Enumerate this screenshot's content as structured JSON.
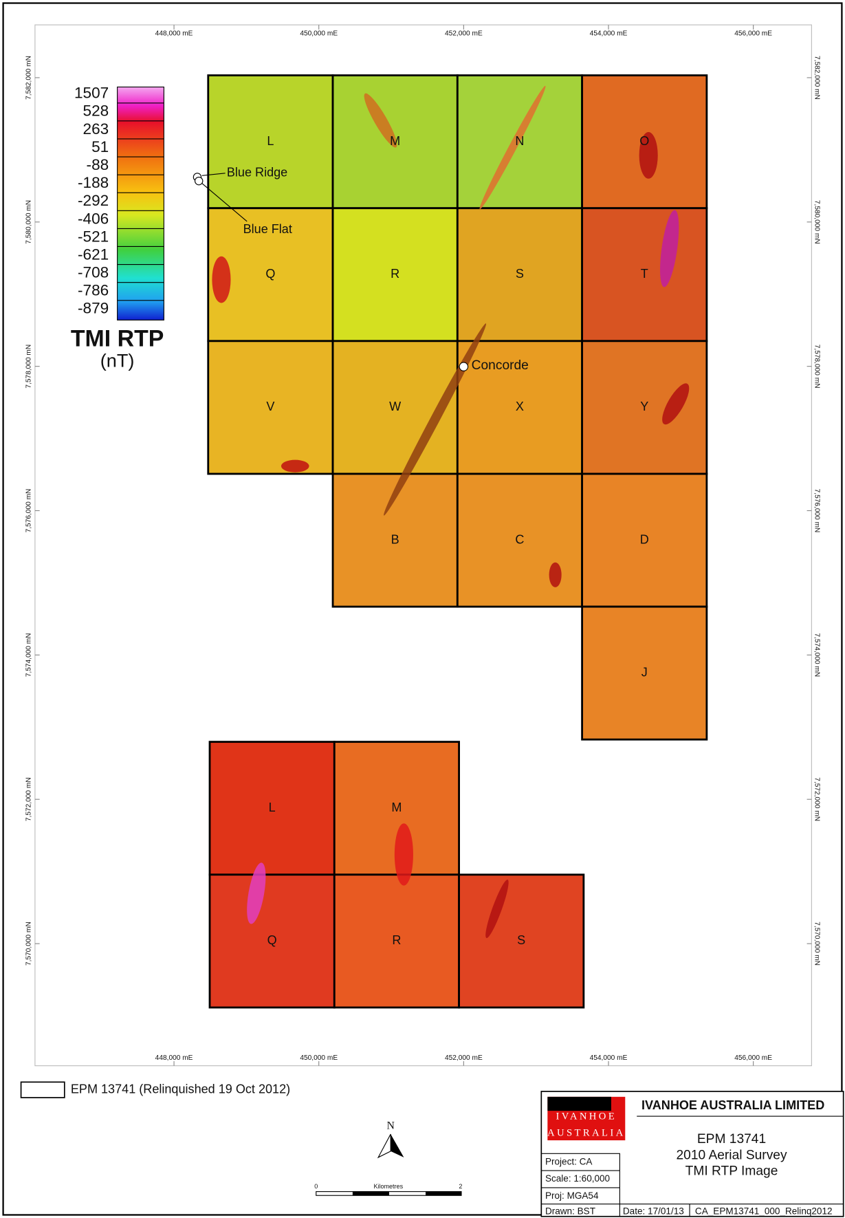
{
  "map": {
    "eastings": [
      "448,000 mE",
      "450,000 mE",
      "452,000 mE",
      "454,000 mE",
      "456,000 mE"
    ],
    "northings": [
      "7,582,000 mN",
      "7,580,000 mN",
      "7,578,000 mN",
      "7,576,000 mN",
      "7,574,000 mN",
      "7,572,000 mN",
      "7,570,000 mN"
    ],
    "legend": {
      "values": [
        "1507",
        "528",
        "263",
        "51",
        "-88",
        "-188",
        "-292",
        "-406",
        "-521",
        "-621",
        "-708",
        "-786",
        "-879"
      ],
      "title": "TMI RTP",
      "unit": "(nT)"
    },
    "blocks": [
      "L",
      "M",
      "N",
      "O",
      "Q",
      "R",
      "S",
      "T",
      "V",
      "W",
      "X",
      "Y",
      "B",
      "C",
      "D",
      "J",
      "L",
      "M",
      "Q",
      "R",
      "S"
    ],
    "places": [
      "Blue Ridge",
      "Blue Flat",
      "Concorde"
    ]
  },
  "key": "EPM 13741 (Relinquished 19 Oct 2012)",
  "north": "N",
  "scale_bar": {
    "start": "0",
    "unit": "Kilometres",
    "end": "2"
  },
  "title_block": {
    "logo": [
      "IVANHOE",
      "AUSTRALIA"
    ],
    "company": "IVANHOE AUSTRALIA LIMITED",
    "title": [
      "EPM 13741",
      "2010 Aerial Survey",
      "TMI RTP Image"
    ],
    "project": "Project: CA",
    "scale": "Scale: 1:60,000",
    "proj": "Proj: MGA54",
    "drawn": "Drawn: BST",
    "date": "Date: 17/01/13",
    "file": "CA_EPM13741_000_Relinq2012"
  }
}
